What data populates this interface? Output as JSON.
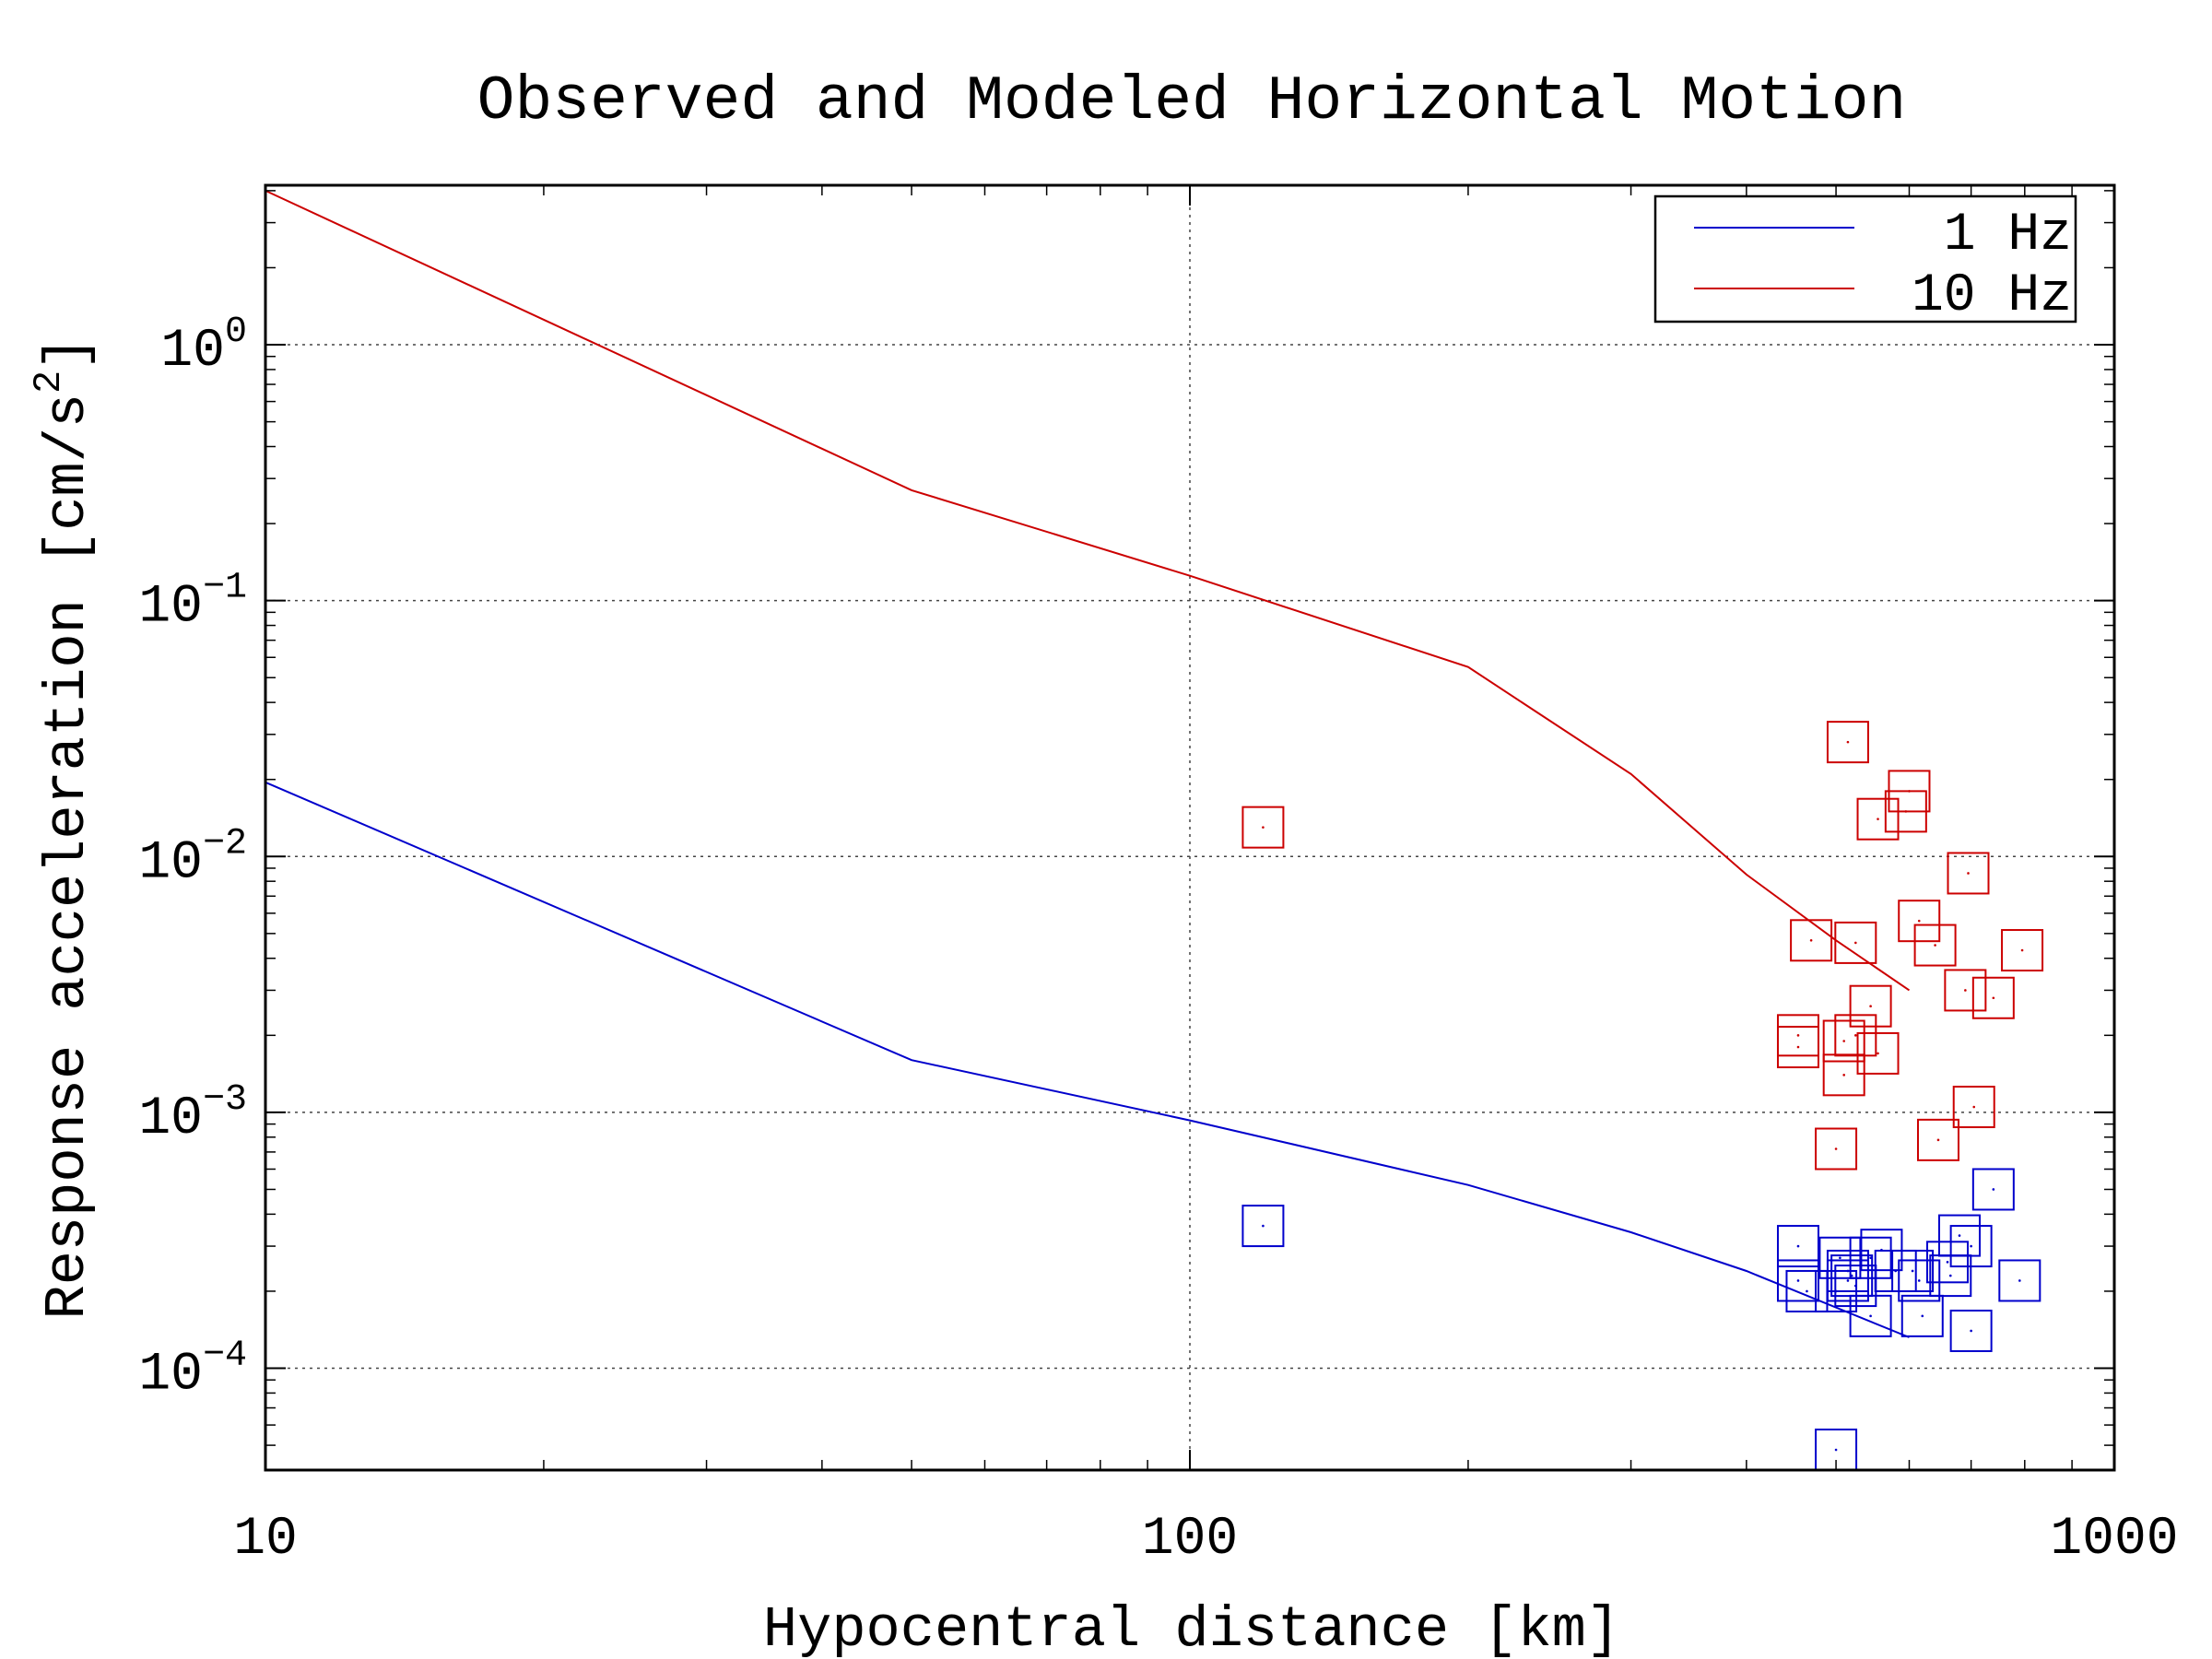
{
  "chart_data": {
    "type": "scatter",
    "title": "Observed and Modeled Horizontal Motion",
    "xlabel": "Hypocentral distance [km]",
    "ylabel_main": "Response acceleration [cm/s",
    "ylabel_sup": "2",
    "ylabel_tail": "]",
    "x_scale": "log",
    "y_scale": "log",
    "xlim": [
      10,
      1000
    ],
    "ylim": [
      4e-05,
      4.2
    ],
    "x_ticks": [
      {
        "value": 10,
        "label": "10"
      },
      {
        "value": 100,
        "label": "100"
      },
      {
        "value": 1000,
        "label": "1000"
      }
    ],
    "y_ticks": [
      {
        "value": 1,
        "base": "10",
        "exp": "0"
      },
      {
        "value": 0.1,
        "base": "10",
        "exp": "−1"
      },
      {
        "value": 0.01,
        "base": "10",
        "exp": "−2"
      },
      {
        "value": 0.001,
        "base": "10",
        "exp": "−3"
      },
      {
        "value": 0.0001,
        "base": "10",
        "exp": "−4"
      }
    ],
    "grid": true,
    "legend_position": "top-right",
    "series": [
      {
        "name": "1 Hz",
        "color": "#0000cc",
        "line": [
          [
            10,
            0.0195
          ],
          [
            50,
            0.0016
          ],
          [
            100,
            0.00093
          ],
          [
            200,
            0.00052
          ],
          [
            300,
            0.00034
          ],
          [
            400,
            0.00024
          ],
          [
            600,
            0.000132
          ]
        ],
        "observed": [
          [
            120,
            0.00036
          ],
          [
            455,
            0.0003
          ],
          [
            455,
            0.00022
          ],
          [
            465,
            0.0002
          ],
          [
            500,
            4.8e-05
          ],
          [
            500,
            0.0002
          ],
          [
            505,
            0.00027
          ],
          [
            515,
            0.00024
          ],
          [
            515,
            0.00022
          ],
          [
            520,
            0.00023
          ],
          [
            525,
            0.00021
          ],
          [
            545,
            0.00027
          ],
          [
            545,
            0.00016
          ],
          [
            560,
            0.00029
          ],
          [
            580,
            0.00024
          ],
          [
            605,
            0.00024
          ],
          [
            615,
            0.00022
          ],
          [
            620,
            0.00016
          ],
          [
            660,
            0.00026
          ],
          [
            665,
            0.00023
          ],
          [
            680,
            0.00033
          ],
          [
            700,
            0.0003
          ],
          [
            700,
            0.00014
          ],
          [
            740,
            0.0005
          ],
          [
            790,
            0.00022
          ]
        ]
      },
      {
        "name": "10 Hz",
        "color": "#cc0000",
        "line": [
          [
            10,
            4.0
          ],
          [
            50,
            0.27
          ],
          [
            100,
            0.125
          ],
          [
            200,
            0.055
          ],
          [
            300,
            0.021
          ],
          [
            400,
            0.0085
          ],
          [
            500,
            0.0047
          ],
          [
            600,
            0.003
          ]
        ],
        "observed": [
          [
            120,
            0.013
          ],
          [
            455,
            0.002
          ],
          [
            455,
            0.0018
          ],
          [
            470,
            0.0047
          ],
          [
            500,
            0.00072
          ],
          [
            510,
            0.0019
          ],
          [
            510,
            0.0014
          ],
          [
            515,
            0.028
          ],
          [
            525,
            0.002
          ],
          [
            525,
            0.0046
          ],
          [
            545,
            0.0026
          ],
          [
            555,
            0.0017
          ],
          [
            555,
            0.014
          ],
          [
            595,
            0.015
          ],
          [
            600,
            0.018
          ],
          [
            615,
            0.0056
          ],
          [
            640,
            0.0045
          ],
          [
            645,
            0.00078
          ],
          [
            690,
            0.003
          ],
          [
            695,
            0.0086
          ],
          [
            705,
            0.00105
          ],
          [
            740,
            0.0028
          ],
          [
            795,
            0.0043
          ]
        ]
      }
    ]
  }
}
